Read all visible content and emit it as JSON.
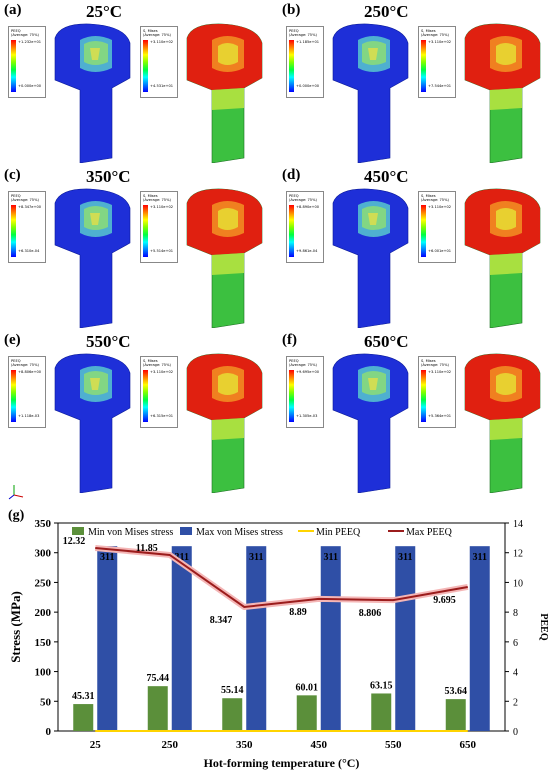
{
  "panels": [
    {
      "letter": "(a)",
      "temp": "25°C",
      "peeq_top": "+1.232e+01",
      "peeq_bot": "+0.000e+00",
      "mises_top": "+3.110e+02",
      "mises_bot": "+4.531e+01"
    },
    {
      "letter": "(b)",
      "temp": "250°C",
      "peeq_top": "+1.185e+01",
      "peeq_bot": "+0.000e+00",
      "mises_top": "+3.110e+02",
      "mises_bot": "+7.544e+01"
    },
    {
      "letter": "(c)",
      "temp": "350°C",
      "peeq_top": "+8.347e+00",
      "peeq_bot": "+6.310e-04",
      "mises_top": "+3.110e+02",
      "mises_bot": "+5.514e+01"
    },
    {
      "letter": "(d)",
      "temp": "450°C",
      "peeq_top": "+8.890e+00",
      "peeq_bot": "+9.861e-04",
      "mises_top": "+3.110e+02",
      "mises_bot": "+6.001e+01"
    },
    {
      "letter": "(e)",
      "temp": "550°C",
      "peeq_top": "+8.806e+00",
      "peeq_bot": "+1.118e-03",
      "mises_top": "+3.110e+02",
      "mises_bot": "+6.315e+01"
    },
    {
      "letter": "(f)",
      "temp": "650°C",
      "peeq_top": "+9.695e+00",
      "peeq_bot": "+1.305e-03",
      "mises_top": "+3.110e+02",
      "mises_bot": "+5.364e+01"
    }
  ],
  "legend_titles": {
    "peeq": "PEEQ",
    "mises": "S, Mises",
    "avg": "(Average: 75%)"
  },
  "chart_data": {
    "type": "bar",
    "panel_letter": "(g)",
    "categories": [
      "25",
      "250",
      "350",
      "450",
      "550",
      "650"
    ],
    "xlabel": "Hot-forming temperature (°C)",
    "ylabel": "Stress (MPa)",
    "y2label": "PEEQ",
    "ylim": [
      0,
      350
    ],
    "y2lim": [
      0,
      14
    ],
    "yticks": [
      0,
      50,
      100,
      150,
      200,
      250,
      300,
      350
    ],
    "y2ticks": [
      0,
      2,
      4,
      6,
      8,
      10,
      12,
      14
    ],
    "legend_position": "top",
    "series": [
      {
        "name": "Min von Mises stress",
        "kind": "bar",
        "color": "#5b8f3a",
        "values": [
          45.31,
          75.44,
          55.14,
          60.01,
          63.15,
          53.64
        ],
        "labels": [
          "45.31",
          "75.44",
          "55.14",
          "60.01",
          "63.15",
          "53.64"
        ]
      },
      {
        "name": "Max von Mises stress",
        "kind": "bar",
        "color": "#2f4fa6",
        "values": [
          311,
          311,
          311,
          311,
          311,
          311
        ],
        "labels": [
          "311",
          "311",
          "311",
          "311",
          "311",
          "311"
        ]
      },
      {
        "name": "Min PEEQ",
        "kind": "line",
        "axis": "right",
        "color": "#ffd400",
        "values": [
          0,
          0,
          0.000631,
          0.000986,
          0.001118,
          0.001305
        ]
      },
      {
        "name": "Max PEEQ",
        "kind": "line",
        "axis": "right",
        "color": "#9b1c1c",
        "values": [
          12.32,
          11.85,
          8.347,
          8.89,
          8.806,
          9.695
        ],
        "labels": [
          "12.32",
          "11.85",
          "8.347",
          "8.89",
          "8.806",
          "9.695"
        ]
      }
    ]
  }
}
